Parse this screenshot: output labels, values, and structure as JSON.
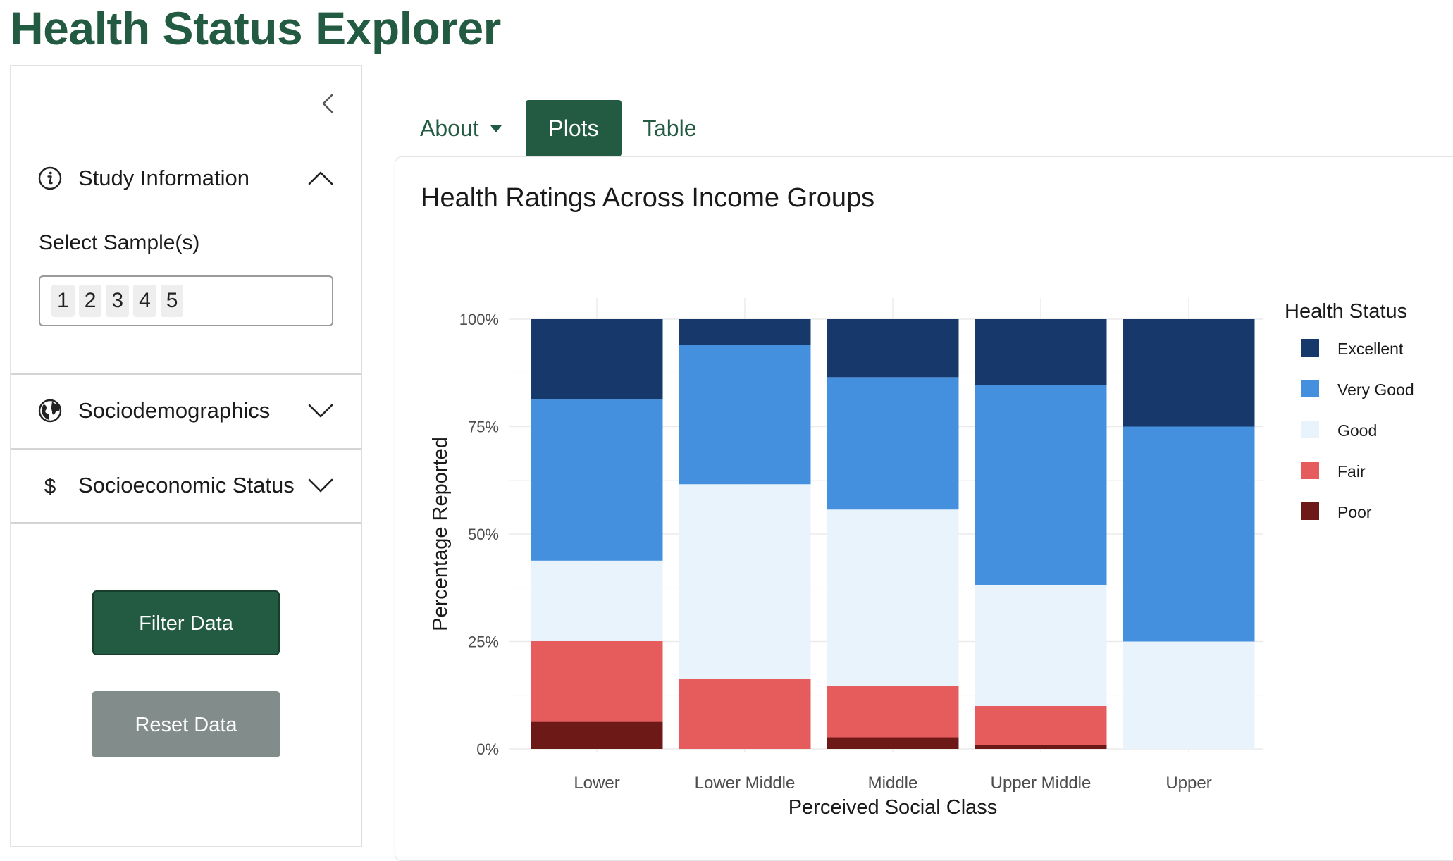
{
  "app": {
    "title": "Health Status Explorer"
  },
  "sidebar": {
    "study_info": {
      "label": "Study Information",
      "icon": "info-icon"
    },
    "select_samples": {
      "label": "Select Sample(s)",
      "selected": [
        "1",
        "2",
        "3",
        "4",
        "5"
      ]
    },
    "sociodemographics": {
      "label": "Sociodemographics",
      "icon": "globe-icon"
    },
    "socioeconomic": {
      "label": "Socioeconomic Status",
      "icon": "dollar-icon"
    },
    "filter_label": "Filter Data",
    "reset_label": "Reset Data"
  },
  "tabs": [
    {
      "label": "About",
      "active": false,
      "dropdown": true
    },
    {
      "label": "Plots",
      "active": true
    },
    {
      "label": "Table",
      "active": false
    }
  ],
  "card": {
    "title": "Health Ratings Across Income Groups"
  },
  "colors": {
    "brand": "#225a42",
    "Excellent": "#17386a",
    "Very Good": "#4490df",
    "Good": "#e8f3fc",
    "Fair": "#e65b5c",
    "Poor": "#6c1918"
  },
  "chart_data": {
    "type": "bar",
    "stacked": true,
    "normalized": true,
    "xlabel": "Perceived Social Class",
    "ylabel": "Percentage Reported",
    "ylim": [
      0,
      100
    ],
    "yticks": [
      "0%",
      "25%",
      "50%",
      "75%",
      "100%"
    ],
    "legend_title": "Health Status",
    "legend_position": "right",
    "grid": true,
    "categories": [
      "Lower",
      "Lower Middle",
      "Middle",
      "Upper Middle",
      "Upper"
    ],
    "series": [
      {
        "name": "Poor",
        "values": [
          6.3,
          0,
          2.7,
          0.9,
          0
        ]
      },
      {
        "name": "Fair",
        "values": [
          18.8,
          16.4,
          12.0,
          9.1,
          0
        ]
      },
      {
        "name": "Good",
        "values": [
          18.7,
          45.2,
          41.0,
          28.2,
          25.0
        ]
      },
      {
        "name": "Very Good",
        "values": [
          37.5,
          32.4,
          30.8,
          46.4,
          50.0
        ]
      },
      {
        "name": "Excellent",
        "values": [
          18.7,
          6.0,
          13.5,
          15.4,
          25.0
        ]
      }
    ]
  }
}
